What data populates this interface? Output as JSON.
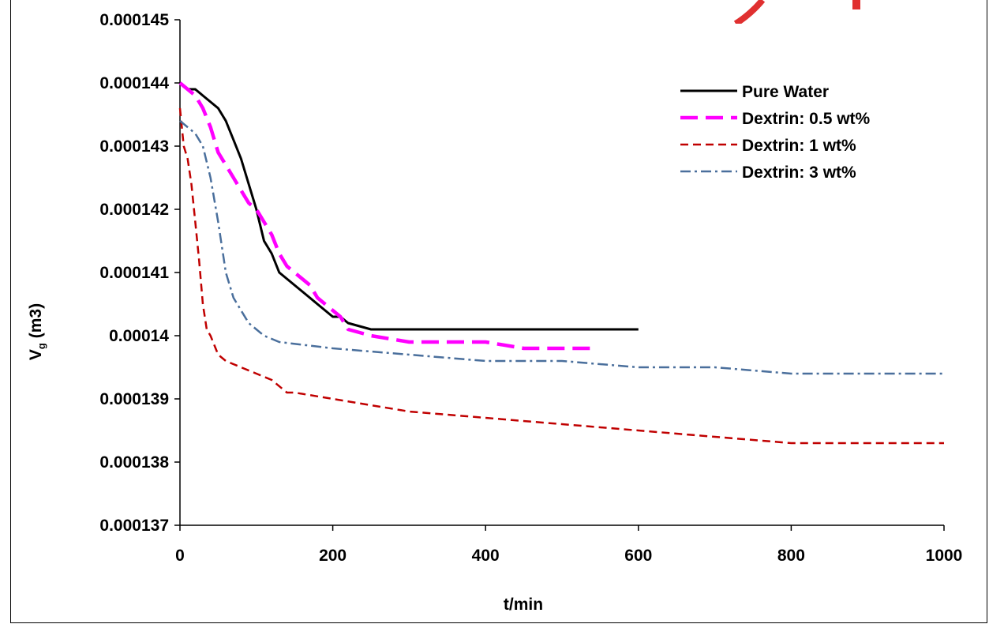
{
  "chart_data": {
    "type": "line",
    "title": "",
    "xlabel": "t/min",
    "ylabel_main": "V",
    "ylabel_sub": "g",
    "ylabel_unit": " (m3)",
    "xlim": [
      0,
      1000
    ],
    "ylim": [
      0.000137,
      0.000145
    ],
    "xticks": [
      0,
      200,
      400,
      600,
      800,
      1000
    ],
    "xtick_labels": [
      "0",
      "200",
      "400",
      "600",
      "800",
      "1000"
    ],
    "yticks": [
      0.000137,
      0.000138,
      0.000139,
      0.00014,
      0.000141,
      0.000142,
      0.000143,
      0.000144,
      0.000145
    ],
    "ytick_labels": [
      "0.000137",
      "0.000138",
      "0.000139",
      "0.00014",
      "0.000141",
      "0.000142",
      "0.000143",
      "0.000144",
      "0.000145"
    ],
    "grid": false,
    "legend_position": "top-right",
    "series": [
      {
        "name": "Pure Water",
        "color": "#000000",
        "style": "solid",
        "x": [
          0,
          10,
          20,
          30,
          40,
          50,
          60,
          70,
          80,
          90,
          100,
          110,
          120,
          130,
          140,
          150,
          160,
          170,
          180,
          190,
          200,
          210,
          220,
          250,
          300,
          350,
          400,
          500,
          600
        ],
        "y": [
          0.000144,
          0.0001439,
          0.0001439,
          0.0001438,
          0.0001437,
          0.0001436,
          0.0001434,
          0.0001431,
          0.0001428,
          0.0001424,
          0.000142,
          0.0001415,
          0.0001413,
          0.000141,
          0.0001409,
          0.0001408,
          0.0001407,
          0.0001406,
          0.0001405,
          0.0001404,
          0.0001403,
          0.0001403,
          0.0001402,
          0.0001401,
          0.0001401,
          0.0001401,
          0.0001401,
          0.0001401,
          0.0001401
        ]
      },
      {
        "name": "Dextrin: 0.5 wt%",
        "color": "#ff00ff",
        "style": "long-dash",
        "x": [
          0,
          10,
          20,
          30,
          40,
          50,
          60,
          70,
          80,
          90,
          100,
          110,
          120,
          130,
          140,
          150,
          160,
          170,
          180,
          190,
          200,
          210,
          220,
          250,
          300,
          350,
          400,
          450,
          500,
          540
        ],
        "y": [
          0.000144,
          0.0001439,
          0.0001438,
          0.0001436,
          0.0001433,
          0.0001429,
          0.0001427,
          0.0001425,
          0.0001423,
          0.0001421,
          0.000142,
          0.0001418,
          0.0001416,
          0.0001413,
          0.0001411,
          0.000141,
          0.0001409,
          0.0001408,
          0.0001406,
          0.0001405,
          0.0001404,
          0.0001403,
          0.0001401,
          0.00014,
          0.0001399,
          0.0001399,
          0.0001399,
          0.0001398,
          0.0001398,
          0.0001398
        ]
      },
      {
        "name": "Dextrin: 1 wt%",
        "color": "#c00000",
        "style": "dash",
        "x": [
          0,
          5,
          10,
          15,
          20,
          25,
          30,
          35,
          40,
          50,
          60,
          80,
          100,
          120,
          140,
          150,
          200,
          300,
          400,
          500,
          600,
          700,
          800,
          900,
          1000
        ],
        "y": [
          0.0001436,
          0.000143,
          0.0001428,
          0.0001424,
          0.0001418,
          0.0001412,
          0.0001405,
          0.0001401,
          0.00014,
          0.0001397,
          0.0001396,
          0.0001395,
          0.0001394,
          0.0001393,
          0.0001391,
          0.0001391,
          0.000139,
          0.0001388,
          0.0001387,
          0.0001386,
          0.0001385,
          0.0001384,
          0.0001383,
          0.0001383,
          0.0001383
        ]
      },
      {
        "name": "Dextrin: 3 wt%",
        "color": "#4a6f9c",
        "style": "dash-dot",
        "x": [
          0,
          10,
          20,
          30,
          40,
          50,
          60,
          70,
          80,
          90,
          100,
          110,
          130,
          200,
          300,
          400,
          500,
          600,
          700,
          800,
          900,
          1000
        ],
        "y": [
          0.0001434,
          0.0001433,
          0.0001432,
          0.000143,
          0.0001425,
          0.0001418,
          0.000141,
          0.0001406,
          0.0001404,
          0.0001402,
          0.0001401,
          0.00014,
          0.0001399,
          0.0001398,
          0.0001397,
          0.0001396,
          0.0001396,
          0.0001395,
          0.0001395,
          0.0001394,
          0.0001394,
          0.0001394
        ]
      }
    ]
  }
}
